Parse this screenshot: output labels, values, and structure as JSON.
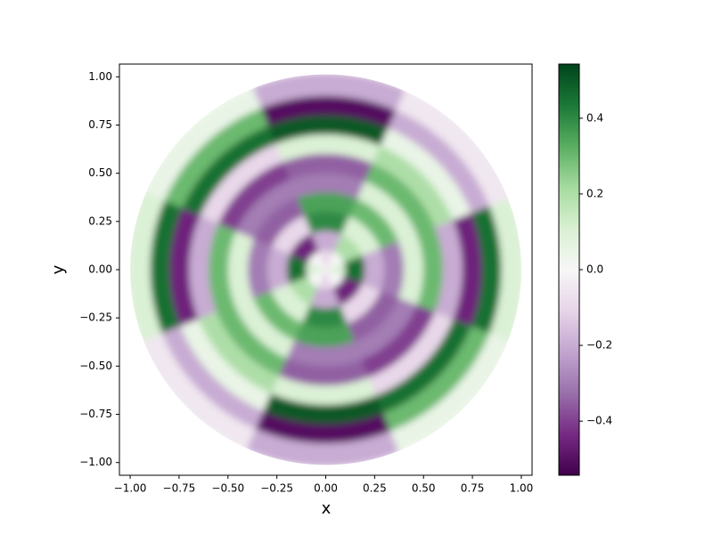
{
  "chart_data": {
    "type": "polar-heatmap",
    "x_label": "x",
    "y_label": "y",
    "colormap": "PRGn",
    "r": [
      0.05,
      0.15,
      0.25,
      0.35,
      0.45,
      0.55,
      0.65,
      0.75,
      0.85,
      0.95
    ],
    "theta": [
      0,
      45,
      90,
      135,
      180,
      225,
      270,
      315
    ],
    "values": [
      [
        0.1,
        0.0,
        -0.1,
        0.0,
        0.1,
        0.0,
        -0.1,
        0.0
      ],
      [
        0.45,
        0.2,
        -0.2,
        -0.45,
        0.45,
        0.2,
        -0.2,
        -0.45
      ],
      [
        -0.2,
        0.1,
        0.4,
        -0.1,
        -0.2,
        0.1,
        0.4,
        -0.1
      ],
      [
        -0.3,
        0.3,
        0.35,
        -0.35,
        -0.3,
        0.3,
        0.35,
        -0.35
      ],
      [
        0.1,
        0.1,
        -0.3,
        -0.3,
        0.1,
        0.1,
        -0.3,
        -0.3
      ],
      [
        0.3,
        0.3,
        -0.35,
        -0.4,
        0.3,
        0.3,
        -0.35,
        -0.4
      ],
      [
        -0.2,
        0.2,
        0.1,
        -0.1,
        -0.2,
        0.2,
        0.1,
        -0.1
      ],
      [
        -0.45,
        0.05,
        0.5,
        0.45,
        -0.45,
        0.05,
        0.5,
        0.45
      ],
      [
        0.45,
        -0.2,
        -0.5,
        0.3,
        0.45,
        -0.2,
        -0.5,
        0.3
      ],
      [
        0.1,
        -0.05,
        -0.2,
        0.05,
        0.1,
        -0.05,
        -0.2,
        0.05
      ]
    ],
    "xlim": [
      -1.055,
      1.055
    ],
    "ylim": [
      -1.066,
      1.066
    ],
    "xticks": [
      {
        "value": -1,
        "label": "−1.00"
      },
      {
        "value": -0.75,
        "label": "−0.75"
      },
      {
        "value": -0.5,
        "label": "−0.50"
      },
      {
        "value": -0.25,
        "label": "−0.25"
      },
      {
        "value": 0,
        "label": "0.00"
      },
      {
        "value": 0.25,
        "label": "0.25"
      },
      {
        "value": 0.5,
        "label": "0.50"
      },
      {
        "value": 0.75,
        "label": "0.75"
      },
      {
        "value": 1,
        "label": "1.00"
      }
    ],
    "yticks": [
      {
        "value": -1,
        "label": "−1.00"
      },
      {
        "value": -0.75,
        "label": "−0.75"
      },
      {
        "value": -0.5,
        "label": "−0.50"
      },
      {
        "value": -0.25,
        "label": "−0.25"
      },
      {
        "value": 0,
        "label": "0.00"
      },
      {
        "value": 0.25,
        "label": "0.25"
      },
      {
        "value": 0.5,
        "label": "0.50"
      },
      {
        "value": 0.75,
        "label": "0.75"
      },
      {
        "value": 1,
        "label": "1.00"
      }
    ],
    "clim": [
      -0.543,
      0.543
    ],
    "cticks": [
      {
        "value": -0.4,
        "label": "−0.4"
      },
      {
        "value": -0.2,
        "label": "−0.2"
      },
      {
        "value": 0,
        "label": "0.0"
      },
      0.2,
      0.4
    ]
  }
}
